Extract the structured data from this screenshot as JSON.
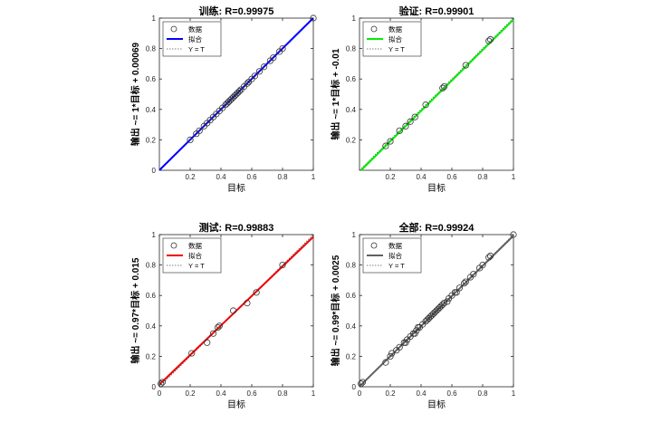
{
  "chart_data": [
    {
      "type": "scatter",
      "title": "训练: R=0.99975",
      "xlabel": "目标",
      "ylabel": "输出 ~= 1*目标 + 0.00069",
      "xlim": [
        0,
        1
      ],
      "ylim": [
        0,
        1
      ],
      "xticks": [
        "0.2",
        "0.4",
        "0.6",
        "0.8",
        "1"
      ],
      "yticks": [
        "0",
        "0.2",
        "0.4",
        "0.6",
        "0.8",
        "1"
      ],
      "grid": false,
      "legend_position": "top-left",
      "fit_color": "#0000ff",
      "fit": {
        "slope": 1,
        "intercept": 0.00069
      },
      "series": [
        {
          "name": "数据",
          "marker": "circle",
          "x": [
            0.2,
            0.24,
            0.26,
            0.29,
            0.31,
            0.33,
            0.35,
            0.37,
            0.39,
            0.41,
            0.43,
            0.44,
            0.45,
            0.46,
            0.47,
            0.48,
            0.49,
            0.5,
            0.51,
            0.52,
            0.53,
            0.55,
            0.57,
            0.58,
            0.6,
            0.62,
            0.65,
            0.68,
            0.72,
            0.74,
            0.78,
            0.8,
            1.0
          ],
          "y": [
            0.2,
            0.24,
            0.26,
            0.29,
            0.31,
            0.33,
            0.35,
            0.37,
            0.39,
            0.41,
            0.43,
            0.44,
            0.45,
            0.46,
            0.47,
            0.48,
            0.49,
            0.5,
            0.51,
            0.52,
            0.53,
            0.55,
            0.57,
            0.58,
            0.6,
            0.62,
            0.65,
            0.68,
            0.72,
            0.74,
            0.78,
            0.8,
            1.0
          ]
        },
        {
          "name": "拟合"
        },
        {
          "name": "Y = T"
        }
      ]
    },
    {
      "type": "scatter",
      "title": "验证: R=0.99901",
      "xlabel": "目标",
      "ylabel": "输出 ~= 1*目标 + -0.01",
      "xlim": [
        0,
        1
      ],
      "ylim": [
        0,
        1
      ],
      "xticks": [
        "0.2",
        "0.4",
        "0.6",
        "0.8",
        "1"
      ],
      "yticks": [
        "0.2",
        "0.4",
        "0.6",
        "0.8",
        "1"
      ],
      "grid": false,
      "legend_position": "top-left",
      "fit_color": "#00ee00",
      "fit": {
        "slope": 1,
        "intercept": -0.01
      },
      "series": [
        {
          "name": "数据",
          "marker": "circle",
          "x": [
            0.17,
            0.2,
            0.26,
            0.3,
            0.33,
            0.36,
            0.43,
            0.54,
            0.55,
            0.69,
            0.84,
            0.85
          ],
          "y": [
            0.16,
            0.19,
            0.26,
            0.29,
            0.32,
            0.35,
            0.43,
            0.54,
            0.55,
            0.69,
            0.85,
            0.86
          ]
        },
        {
          "name": "拟合"
        },
        {
          "name": "Y = T"
        }
      ]
    },
    {
      "type": "scatter",
      "title": "测试: R=0.99883",
      "xlabel": "目标",
      "ylabel": "输出 ~= 0.97*目标 + 0.015",
      "xlim": [
        0,
        1
      ],
      "ylim": [
        0,
        1
      ],
      "xticks": [
        "0",
        "0.2",
        "0.4",
        "0.6",
        "0.8",
        "1"
      ],
      "yticks": [
        "0",
        "0.2",
        "0.4",
        "0.6",
        "0.8",
        "1"
      ],
      "grid": false,
      "legend_position": "top-left",
      "fit_color": "#ee0000",
      "fit": {
        "slope": 0.97,
        "intercept": 0.015
      },
      "series": [
        {
          "name": "数据",
          "marker": "circle",
          "x": [
            0.01,
            0.02,
            0.21,
            0.31,
            0.35,
            0.38,
            0.39,
            0.48,
            0.57,
            0.63,
            0.8
          ],
          "y": [
            0.02,
            0.03,
            0.22,
            0.29,
            0.35,
            0.39,
            0.4,
            0.5,
            0.55,
            0.62,
            0.8
          ]
        },
        {
          "name": "拟合"
        },
        {
          "name": "Y = T"
        }
      ]
    },
    {
      "type": "scatter",
      "title": "全部: R=0.99924",
      "xlabel": "目标",
      "ylabel": "输出 ~= 0.99*目标 + 0.0025",
      "xlim": [
        0,
        1
      ],
      "ylim": [
        0,
        1
      ],
      "xticks": [
        "0",
        "0.2",
        "0.4",
        "0.6",
        "0.8",
        "1"
      ],
      "yticks": [
        "0",
        "0.2",
        "0.4",
        "0.6",
        "0.8",
        "1"
      ],
      "grid": false,
      "legend_position": "top-left",
      "fit_color": "#606060",
      "fit": {
        "slope": 0.99,
        "intercept": 0.0025
      },
      "series": [
        {
          "name": "数据",
          "marker": "circle",
          "x": [
            0.01,
            0.02,
            0.17,
            0.2,
            0.21,
            0.24,
            0.26,
            0.29,
            0.3,
            0.31,
            0.33,
            0.35,
            0.36,
            0.37,
            0.38,
            0.39,
            0.41,
            0.43,
            0.44,
            0.45,
            0.46,
            0.47,
            0.48,
            0.49,
            0.5,
            0.51,
            0.52,
            0.53,
            0.54,
            0.55,
            0.57,
            0.58,
            0.6,
            0.62,
            0.63,
            0.65,
            0.68,
            0.69,
            0.72,
            0.74,
            0.78,
            0.8,
            0.84,
            0.85,
            1.0
          ],
          "y": [
            0.02,
            0.03,
            0.16,
            0.2,
            0.22,
            0.24,
            0.26,
            0.29,
            0.29,
            0.31,
            0.33,
            0.35,
            0.35,
            0.37,
            0.39,
            0.39,
            0.41,
            0.43,
            0.44,
            0.45,
            0.46,
            0.47,
            0.48,
            0.49,
            0.5,
            0.51,
            0.52,
            0.53,
            0.54,
            0.55,
            0.56,
            0.58,
            0.6,
            0.62,
            0.62,
            0.65,
            0.68,
            0.69,
            0.72,
            0.74,
            0.78,
            0.8,
            0.85,
            0.86,
            1.0
          ]
        },
        {
          "name": "拟合"
        },
        {
          "name": "Y = T"
        }
      ]
    }
  ]
}
